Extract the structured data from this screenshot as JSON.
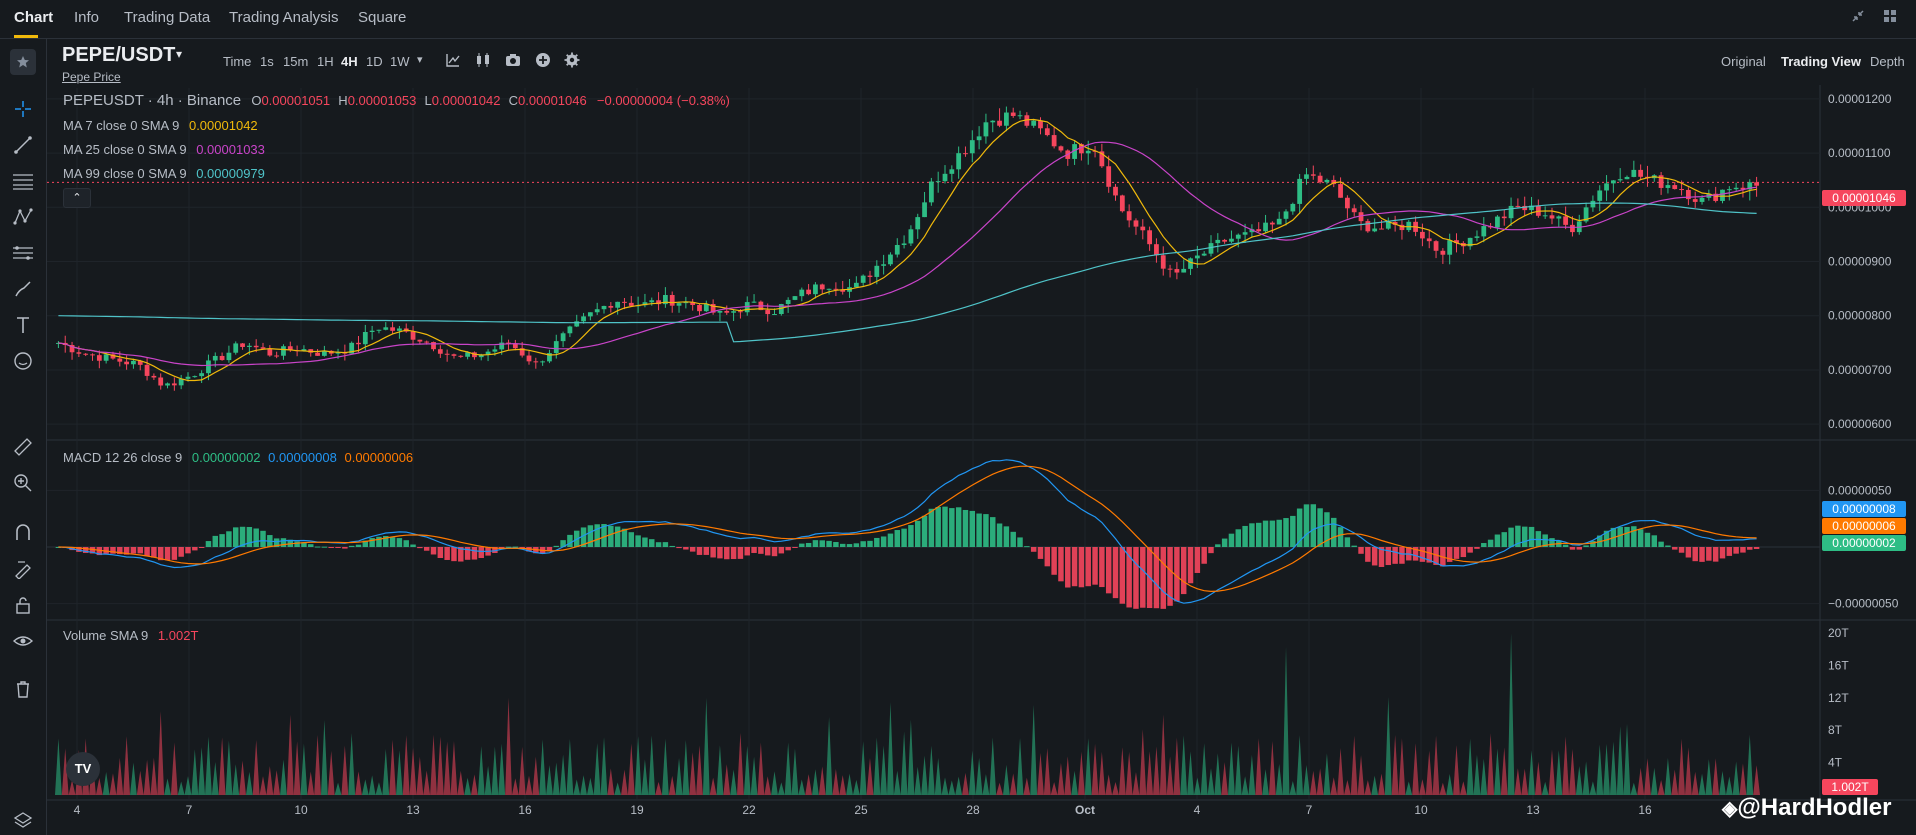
{
  "nav": {
    "tabs": [
      "Chart",
      "Info",
      "Trading Data",
      "Trading Analysis",
      "Square"
    ],
    "active": "Chart",
    "right_icons": [
      "collapse-icon",
      "layout-grid-icon"
    ]
  },
  "toolbar": {
    "pair": "PEPE/USDT",
    "pair_sub": "Pepe Price",
    "intervals": [
      "Time",
      "1s",
      "15m",
      "1H",
      "4H",
      "1D",
      "1W"
    ],
    "active_interval": "4H",
    "icons": [
      "indicator-icon",
      "candle-type-icon",
      "screenshot-icon",
      "add-icon",
      "settings-icon"
    ],
    "views": [
      "Original",
      "Trading View",
      "Depth"
    ],
    "active_view": "Trading View"
  },
  "legend": {
    "symbol": "PEPEUSDT · 4h · Binance",
    "o_label": "O",
    "o": "0.00001051",
    "h_label": "H",
    "h": "0.00001053",
    "l_label": "L",
    "l": "0.00001042",
    "c_label": "C",
    "c": "0.00001046",
    "change": "−0.00000004 (−0.38%)",
    "ma7_label": "MA 7 close 0 SMA 9",
    "ma7": "0.00001042",
    "ma25_label": "MA 25 close 0 SMA 9",
    "ma25": "0.00001033",
    "ma99_label": "MA 99 close 0 SMA 9",
    "ma99": "0.00000979",
    "macd_label": "MACD 12 26 close 9",
    "macd_hist": "0.00000002",
    "macd_line": "0.00000008",
    "macd_signal": "0.00000006",
    "vol_label": "Volume SMA 9",
    "vol": "1.002T"
  },
  "price_axis": [
    "0.00001200",
    "0.00001100",
    "0.00001000",
    "0.00000900",
    "0.00000800",
    "0.00000700",
    "0.00000600"
  ],
  "price_tag": "0.00001046",
  "macd_axis": [
    "0.00000050",
    "−0.00000050"
  ],
  "macd_tags": {
    "line": "0.00000008",
    "signal": "0.00000006",
    "hist": "0.00000002"
  },
  "volume_axis": [
    "20T",
    "16T",
    "12T",
    "8T",
    "4T"
  ],
  "volume_tag": "1.002T",
  "time_axis": [
    "4",
    "7",
    "10",
    "13",
    "16",
    "19",
    "22",
    "25",
    "28",
    "Oct",
    "4",
    "7",
    "10",
    "13",
    "16"
  ],
  "watermark": "@HardHodler",
  "tv_logo": "TV",
  "colors": {
    "up": "#2ebd85",
    "down": "#f6465d",
    "ma7": "#f0b90b",
    "ma25": "#c944c9",
    "ma99": "#4fc3c8",
    "macd": "#2196f3",
    "signal": "#ff7a00",
    "accent": "#f0b90b"
  },
  "left_tools": [
    "crosshair-icon",
    "trend-line-icon",
    "horizontal-lines-icon",
    "pattern-icon",
    "fib-icon",
    "brush-icon",
    "text-icon",
    "emoji-icon",
    "ruler-icon",
    "zoom-icon",
    "magnet-icon",
    "lock-drawing-icon",
    "unlock-icon",
    "eye-icon",
    "trash-icon",
    "layers-icon"
  ],
  "chart_data": {
    "type": "candlestick",
    "price_range": [
      5.8e-06,
      1.22e-05
    ],
    "price_close_path": [
      7.5e-06,
      7.3e-06,
      7.2e-06,
      7.1e-06,
      6.7e-06,
      6.9e-06,
      7.2e-06,
      7.5e-06,
      7.3e-06,
      7.4e-06,
      7.3e-06,
      7.4e-06,
      7.8e-06,
      7.7e-06,
      7.5e-06,
      7.2e-06,
      7.3e-06,
      7.5e-06,
      7.1e-06,
      7.6e-06,
      8e-06,
      8.3e-06,
      8.2e-06,
      8.3e-06,
      8.2e-06,
      8e-06,
      8.2e-06,
      8.1e-06,
      8.4e-06,
      8.6e-06,
      8.5e-06,
      9e-06,
      9.5e-06,
      1.05e-05,
      1.1e-05,
      1.16e-05,
      1.17e-05,
      1.14e-05,
      1.1e-05,
      1.12e-05,
      1e-05,
      9.4e-06,
      8.7e-06,
      9.1e-06,
      9.4e-06,
      9.5e-06,
      9.7e-06,
      1.06e-05,
      1.04e-05,
      9.7e-06,
      9.6e-06,
      9.7e-06,
      9.2e-06,
      9.4e-06,
      9.7e-06,
      1e-05,
      9.9e-06,
      9.6e-06,
      1.03e-05,
      1.07e-05,
      1.05e-05,
      1.04e-05,
      1.01e-05,
      1.04e-05,
      1.04e-05
    ],
    "macd_range": [
      -6e-07,
      9e-07
    ],
    "volume_range": [
      0,
      21
    ]
  }
}
